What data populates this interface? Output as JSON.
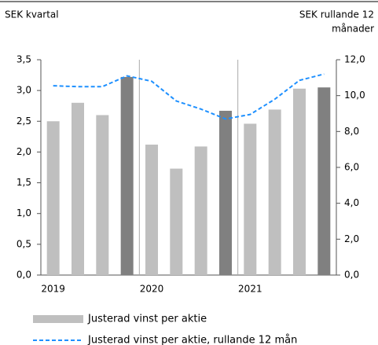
{
  "chart_data": {
    "type": "bar_line",
    "y_label": "SEK kvartal",
    "y2_label": [
      "SEK rullande 12",
      "månader"
    ],
    "categories": [
      "2019",
      null,
      null,
      null,
      "2020",
      null,
      null,
      null,
      "2021",
      null,
      null,
      null
    ],
    "series": [
      {
        "name": "Justerad vinst per aktie",
        "kind": "bar",
        "color": "#bfbfbf",
        "colors": [
          "#bfbfbf",
          "#bfbfbf",
          "#bfbfbf",
          "#808080",
          "#bfbfbf",
          "#bfbfbf",
          "#bfbfbf",
          "#808080",
          "#bfbfbf",
          "#bfbfbf",
          "#bfbfbf",
          "#808080"
        ],
        "values": [
          2.5,
          2.8,
          2.6,
          3.22,
          2.12,
          1.73,
          2.09,
          2.67,
          2.46,
          2.69,
          3.03,
          3.05
        ]
      },
      {
        "name": "Justerad vinst per aktie, rullande 12 mån",
        "kind": "line",
        "axis": "y2",
        "color": "#1e90ff",
        "dashed": true,
        "values": [
          10.55,
          10.5,
          10.5,
          11.1,
          10.8,
          9.7,
          9.25,
          8.7,
          8.95,
          9.8,
          10.85,
          11.2
        ]
      }
    ],
    "ylim": [
      0,
      3.5
    ],
    "yticks": [
      {
        "value": 0,
        "label": "0,0"
      },
      {
        "value": 0.5,
        "label": "0,5"
      },
      {
        "value": 1,
        "label": "1,0"
      },
      {
        "value": 1.5,
        "label": "1,5"
      },
      {
        "value": 2,
        "label": "2,0"
      },
      {
        "value": 2.5,
        "label": "2,5"
      },
      {
        "value": 3,
        "label": "3,0"
      },
      {
        "value": 3.5,
        "label": "3,5"
      }
    ],
    "y2lim": [
      0,
      12
    ],
    "y2ticks": [
      {
        "value": 0,
        "label": "0,0"
      },
      {
        "value": 2,
        "label": "2,0"
      },
      {
        "value": 4,
        "label": "4,0"
      },
      {
        "value": 6,
        "label": "6,0"
      },
      {
        "value": 8,
        "label": "8,0"
      },
      {
        "value": 10,
        "label": "10,0"
      },
      {
        "value": 12,
        "label": "12,0"
      }
    ],
    "grid": false
  }
}
